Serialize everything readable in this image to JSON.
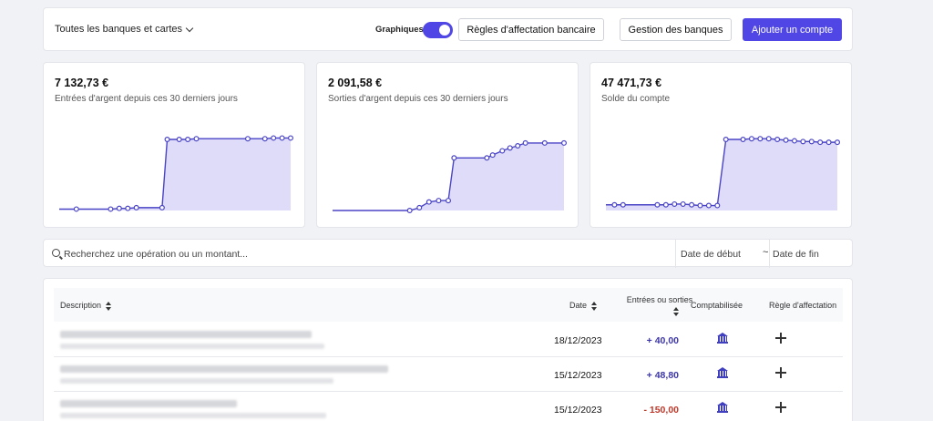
{
  "colors": {
    "accent": "#4f46e5",
    "area_fill": "#dedcf8",
    "line": "#4a44c6",
    "positive": "#3d37a8",
    "negative": "#c0392b"
  },
  "toolbar": {
    "filter_label": "Toutes les banques et cartes",
    "toggle_label": "Graphiques",
    "toggle_on": true,
    "rules_button": "Règles d'affectation bancaire",
    "banks_button": "Gestion des banques",
    "add_button": "Ajouter un compte"
  },
  "stats": [
    {
      "amount": "7 132,73 €",
      "description": "Entrées d'argent depuis ces 30 derniers jours"
    },
    {
      "amount": "2 091,58 €",
      "description": "Sorties d'argent depuis ces 30 derniers jours"
    },
    {
      "amount": "47 471,73 €",
      "description": "Solde du compte"
    }
  ],
  "search": {
    "placeholder": "Recherchez une opération ou un montant...",
    "date_start_placeholder": "Date de début",
    "separator": "~",
    "date_end_placeholder": "Date de fin"
  },
  "table": {
    "columns": {
      "description": "Description",
      "date": "Date",
      "amount_line1": "Entrées ou sorties",
      "accounting": "Comptabilisée",
      "rule": "Règle d'affectation"
    },
    "rows": [
      {
        "date": "18/12/2023",
        "amount": "+ 40,00",
        "type": "positive"
      },
      {
        "date": "15/12/2023",
        "amount": "+ 48,80",
        "type": "positive"
      },
      {
        "date": "15/12/2023",
        "amount": "- 150,00",
        "type": "negative"
      }
    ]
  },
  "chart_data": [
    {
      "type": "area",
      "title": "",
      "xlabel": "",
      "ylabel": "",
      "grid": false,
      "ylim": [
        0,
        1
      ],
      "series": [
        {
          "x": [
            0,
            1,
            3,
            3.5,
            4,
            4.5,
            6,
            6.3,
            7,
            7.5,
            8,
            11,
            12,
            12.5,
            13,
            13.5
          ],
          "values": [
            0.02,
            0.02,
            0.02,
            0.03,
            0.03,
            0.04,
            0.04,
            1,
            1,
            1,
            1.01,
            1.01,
            1.01,
            1.02,
            1.02,
            1.02
          ]
        }
      ]
    },
    {
      "type": "area",
      "title": "",
      "xlabel": "",
      "ylabel": "",
      "grid": false,
      "ylim": [
        0,
        1
      ],
      "series": [
        {
          "x": [
            0,
            4,
            4.5,
            5,
            5.5,
            6,
            6.3,
            8,
            8.3,
            8.8,
            9.2,
            9.6,
            10,
            11,
            12
          ],
          "values": [
            0,
            0,
            0.04,
            0.12,
            0.14,
            0.14,
            0.74,
            0.74,
            0.78,
            0.84,
            0.88,
            0.91,
            0.95,
            0.95,
            0.95
          ]
        }
      ]
    },
    {
      "type": "area",
      "title": "",
      "xlabel": "",
      "ylabel": "",
      "grid": false,
      "ylim": [
        0,
        1
      ],
      "series": [
        {
          "x": [
            0,
            0.5,
            1,
            3,
            3.5,
            4,
            4.5,
            5,
            5.5,
            6,
            6.5,
            7,
            8,
            8.5,
            9,
            9.5,
            10,
            10.5,
            11,
            11.5,
            12,
            12.5,
            13,
            13.5
          ],
          "values": [
            0.08,
            0.08,
            0.08,
            0.08,
            0.08,
            0.09,
            0.09,
            0.08,
            0.07,
            0.07,
            0.07,
            1,
            1,
            1.01,
            1.01,
            1.01,
            1,
            0.99,
            0.98,
            0.97,
            0.97,
            0.96,
            0.96,
            0.96
          ]
        }
      ]
    }
  ]
}
